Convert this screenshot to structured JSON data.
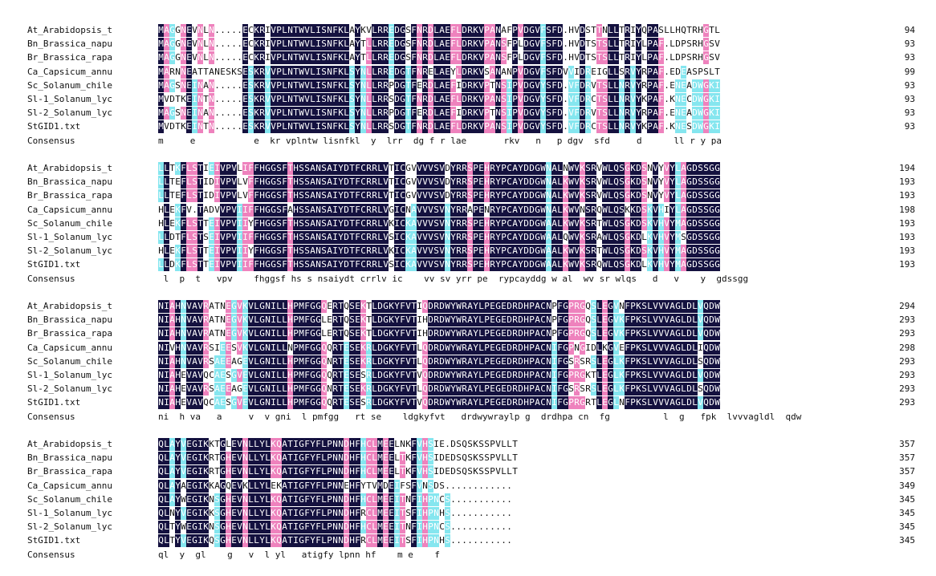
{
  "colors": {
    "identical": "#14113f",
    "high_similarity": "#ee82bd",
    "low_similarity": "#85e6ef",
    "background": "#ffffff"
  },
  "blocks": [
    {
      "rows": [
        {
          "label": "At_Arabidopsis_t",
          "seq": "MAGGNEVNLN.....ECKRIVPLNTWVLISNFKLAYKVLRREDGSFNRDLAEFLDRKVPANAFPVDGVFSFD.HVDSTTNLLTRIYQPASLLHQTRHGTL",
          "end": "94"
        },
        {
          "label": "Bn_Brassica_napu",
          "seq": "MAGGNEVNLN.....ECKRIVPLNTWVLISNFKLAYTLLRREDGSFNRDLAEFLDRKVPANSFPLDGVFSFD.HVDTSTSLLTRIYLPAF.LDPSRHGSV",
          "end": "93"
        },
        {
          "label": "Br_Brassica_rapa",
          "seq": "MAGGNEVNLN.....ECKRIVPLNTWVLISNFKLAYTLLRREDGSFNRDLAEFLDRKVPANSFPLDGVFSFD.HVDTSTSLLTRIYLPAF.LDPSRHGSV",
          "end": "93"
        },
        {
          "label": "Ca_Capsicum_annu",
          "seq": "MARNNEATTANESKSESKRVVPLNTWVLISNFKLSYNLLRREDGTFNRELAEYLDRKVSANANPVDGVFSFDVVIDREIGLLSRVYRPAF.EDEASPSLT",
          "end": "99"
        },
        {
          "label": "Sc_Solanum_chile",
          "seq": "MAGSNEINAN.....ESKRVVPLNTWVLISNFKLSYNLLRRPDGTFERDLAEFIDRKVPTNSIPVDGVYSFD.VFDRVTSLLNRVYRPAF.ENEADWGKI",
          "end": "93"
        },
        {
          "label": "Sl-1_Solanum_lyc",
          "seq": "MVDTKEINTN.....ESKRVVPLNTWVLISNFKLSYNLLRRSDGTFNRDLAEFLDRKVPANSIPVDGVYSFD.VFDRCTSLLNRVYKPAF.KNECDWGKI",
          "end": "93"
        },
        {
          "label": "Sl-2_Solanum_lyc",
          "seq": "MAGSNEINAN.....ESKRVVPLNTWVLISNFKLSYNLLRRPDGTFERDLAEFIDRKVPTNSIPVDGVYSFD.VFDRVTSLLNRVYRPAF.ENEADWGKI",
          "end": "93"
        },
        {
          "label": "StGID1.txt",
          "seq": "MVDTKEINTN.....ESKRVVPLNTWVLISNFKLSYNLLRRSDGTFNRDLAEFLDRKVPANSIPVDGVYSFD.VFDRCTSLLNRVYKPAF.KNESDWGKI",
          "end": "93"
        }
      ],
      "consensus_label": "Consensus",
      "consensus": "m     e           e  kr vplntw lisnfkl  y  lrr  dg f r lae       rkv   n   p dgv  sfd     d      ll r y pa"
    },
    {
      "rows": [
        {
          "label": "At_Arabidopsis_t",
          "seq": "LLTKFLSTIEIVPVLIFFHGGSFTHSSANSAIYDTFCRRLVTICGVVVVSVDYRRSPEHRYPCAYDDGWNALNWVKSRVWLQSGKDSNVYVYLAGDSSGG",
          "end": "194"
        },
        {
          "label": "Bn_Brassica_napu",
          "seq": "LLTEFLSTIDIVPVLVFFHGGSFTHSSANSAIYDTFCRRLVTICGVVVVSVDYRRSPEHRYPCAYDDGWNALKWVKSRVWLQSGKDSNVYVYLAGDSSGG",
          "end": "193"
        },
        {
          "label": "Br_Brassica_rapa",
          "seq": "LLTEFLSTIDIVPVLVFFHGGSFTHSSANSAIYDTFCRRLVTICGVVVVSVDYRRSPEHRYPCAYDDGWNALKWVKSRVWLQSGKDSNVYVYLAGDSSGG",
          "end": "193"
        },
        {
          "label": "Ca_Capsicum_annu",
          "seq": "HLEKFV.TADVVPVIIFFHGGSFAHSSANSAIYDTFCRRLVGICNAVVVSVNYRRAPENRYPCAYDDGWNALKWVNSRQWLQSKKDSKVHIYLAGDSSGG",
          "end": "198"
        },
        {
          "label": "Sc_Solanum_chile",
          "seq": "HLEKFLSTTEIVPVIIYFHGGSFTHSSANSAIYDTFCRRLVKICKAVVVSVNYRRSPEHRYPCAYDDGWAALKWVKSRTWLQSGKDSKVHVYMAGDSSGG",
          "end": "193"
        },
        {
          "label": "Sl-1_Solanum_lyc",
          "seq": "LLDTFLSTSEIVPVIIFFHGGSFTHSSANSAIYDTFCRRLVSICKAVVVSVNYRRSPEHRYPCAYDDGWAALQWVKSRAWLQSGKDLKVHVYMSGDSSGG",
          "end": "193"
        },
        {
          "label": "Sl-2_Solanum_lyc",
          "seq": "HLEKFLSTTEIVPVIIYFHGGSFTHSSANSAIYDTFCRRLVKICKAVVVSVNYRRSPEHRYPCAYDDGWAALKWVKSRTWLQSGKDSKVHVYMAGDSSGG",
          "end": "193"
        },
        {
          "label": "StGID1.txt",
          "seq": "LLDKFLSTTEIVPVIIFFHGGSFTHSSANSAIYDTFCRRLVSICKAVVVSVNYRRSPEHRYPCAYDDGWAALKWVKSRQWLQSGKDLKVHVYMAGDSSGG",
          "end": "193"
        }
      ],
      "consensus_label": "Consensus",
      "consensus": " l  p  t   vpv    fhggsf hs s nsaiydt crrlv ic    vv sv yrr pe  rypcayddg w al  wv sr wlqs   d   v    y  gdssgg"
    },
    {
      "rows": [
        {
          "label": "At_Arabidopsis_t",
          "seq": "NIAHNVAVRATNEGVKVLGNILLHPMFGGQERTQSEKTLDGKYFVTIQDRDWYWRAYLPEGEDRDHPACNPFGPRGQSLEGVNFPKSLVVVAGLDLVQDW",
          "end": "294"
        },
        {
          "label": "Bn_Brassica_napu",
          "seq": "NIAHNVAVRATNEGVKVLGNILLHPMFGGLERTQSEKTLDGKYFVTIHDRDWYWRAYLPEGEDRDHPACNPFGPRGQSLEGVKFPKSLVVVAGLDLVQDW",
          "end": "293"
        },
        {
          "label": "Br_Brassica_rapa",
          "seq": "NIAHNVAVRATNEGVKVLGNILLHPMFGGLERTQSEKTLDGKYFVTIHDRDWYWRAYLPEGEDRDHPACNPFGPRGQSLEGVKFPKSLVVVAGLDLVQDW",
          "end": "293"
        },
        {
          "label": "Ca_Capsicum_annu",
          "seq": "NIVHNVAVRSIEESVKVLGNILLNPMFGGQQRTESEKRLDGKYFVTLQDRDWYWRAYLPEGEDRDHPACNIFGPNGIDLKGVEFPKSLVVVAGLDLIQDW",
          "end": "298"
        },
        {
          "label": "Sc_Solanum_chile",
          "seq": "NIAHNVAVRSAEEAGEVLGNILLHPMFGGQNRTESEKRLDGKYFVTLQDRDWYWRAYLPEGEDRDHPACNIFGSRSRSLEGLKFPKSLVVVAGLDLSQDW",
          "end": "293"
        },
        {
          "label": "Sl-1_Solanum_lyc",
          "seq": "NIAHEVAVQCAESGVEVLGNILLHPMFGGQQRTESESRLDGKYFVTVQDRDWYWRAYLPEGEDRDHPACNIFGPRGKTLEGLKFPKSLVVVAGLDLVQDW",
          "end": "293"
        },
        {
          "label": "Sl-2_Solanum_lyc",
          "seq": "NIAHEVAVRSAEEAGEVLGNILLHPMFGGQNRTESEKRLDGKYFVTLQDRDWYWRAYLPEGEDRDHPACNIFGSRSRSLEGLKFPKSLVVVAGLDLSQDW",
          "end": "293"
        },
        {
          "label": "StGID1.txt",
          "seq": "NIAHEVAVQCAESGVEVLGNILLHPMFGGQQRTESESRLDGKYFVTVQDRDWYWRAYLPEGEDRDHPACNIFGPRGRTLEGLNFPKSLVVVAGLDLVQDW",
          "end": "293"
        }
      ],
      "consensus_label": "Consensus",
      "consensus": "ni  h va   a     v  v gni  l pmfgg   rt se    ldgkyfvt   drdwywraylp g  drdhpa cn  fg          l  g   fpk  lvvvagldl  qdw"
    },
    {
      "rows": [
        {
          "label": "At_Arabidopsis_t",
          "seq": "QLAYVEGIKKTGLEVNLLYLKQATIGFYFLPNNDHFHCLMEELNKFVHSIE.DSQSKSSPVLLT",
          "end": "357"
        },
        {
          "label": "Bn_Brassica_napu",
          "seq": "QLAYVEGIKRTGHEVNLLYLKQATIGFYFLPNNDHFHCLMEELTKFVHSIDEDSQSKSSPVLLT",
          "end": "357"
        },
        {
          "label": "Br_Brassica_rapa",
          "seq": "QLAYVEGIKRTGHEVNLLYLKQATIGFYFLPNNDHFHCLMEELTKFVHSIDEDSQSKSSPVLLT",
          "end": "357"
        },
        {
          "label": "Ca_Capsicum_annu",
          "seq": "QLAYAEGIKKAGQEVKLLYLEKATIGFYFLPNNEHFYTVMDEIFSFVNSDS............",
          "end": "349"
        },
        {
          "label": "Sc_Solanum_chile",
          "seq": "QLAYWEGIKNSGHEVNLLYLKQATIGFYFLPNNDHFHCLMEEITNFIHPNCS...........",
          "end": "345"
        },
        {
          "label": "Sl-1_Solanum_lyc",
          "seq": "QLNYVEGIKKSGHEVNLLYLKQATIGFYFLPNNDHFRCLMEEITSFIHPNHS...........",
          "end": "345"
        },
        {
          "label": "Sl-2_Solanum_lyc",
          "seq": "QLTYWEGIKNSGHEVNLLYLKQATIGFYFLPNNDHFHCLMEEITNFIHPNCS...........",
          "end": "345"
        },
        {
          "label": "StGID1.txt",
          "seq": "QLTYVEGIKQSGHEVNLLYLKQATIGFYFLPNNDHFRCLMEEITSFIHPNHS...........",
          "end": "345"
        }
      ],
      "consensus_label": "Consensus",
      "consensus": "ql  y  gl    g   v  l yl   atigfy lpnn hf    m e    f"
    }
  ]
}
